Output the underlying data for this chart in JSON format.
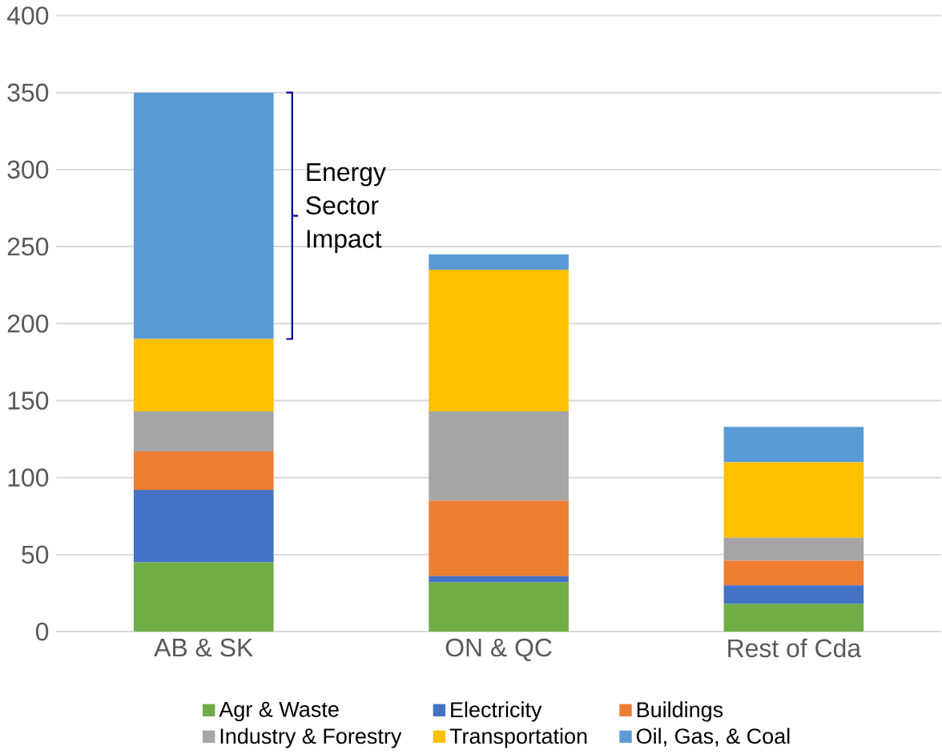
{
  "chart_data": {
    "type": "bar",
    "stacked": true,
    "categories": [
      "AB & SK",
      "ON & QC",
      "Rest of Cda"
    ],
    "series": [
      {
        "name": "Agr & Waste",
        "color": "#70ad47",
        "values": [
          45,
          32,
          18
        ]
      },
      {
        "name": "Electricity",
        "color": "#4472c4",
        "values": [
          47,
          4,
          12
        ]
      },
      {
        "name": "Buildings",
        "color": "#ed7d31",
        "values": [
          25,
          49,
          16
        ]
      },
      {
        "name": "Industry & Forestry",
        "color": "#a5a5a5",
        "values": [
          26,
          58,
          15
        ]
      },
      {
        "name": "Transportation",
        "color": "#ffc000",
        "values": [
          47,
          92,
          49
        ]
      },
      {
        "name": "Oil, Gas, & Coal",
        "color": "#5b9bd5",
        "values": [
          160,
          10,
          23
        ]
      }
    ],
    "ylim": [
      0,
      400
    ],
    "yticks": [
      0,
      50,
      100,
      150,
      200,
      250,
      300,
      350,
      400
    ],
    "grid": "y",
    "legend": "bottom",
    "annotations": [
      "Energy Sector Impact"
    ]
  }
}
